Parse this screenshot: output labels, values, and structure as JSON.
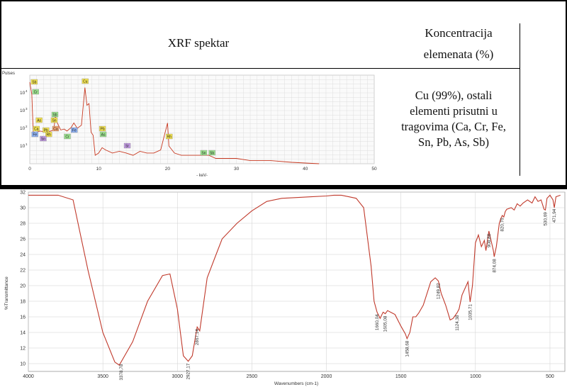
{
  "header": {
    "left_title": "XRF spektar",
    "right_title_line1": "Koncentracija",
    "right_title_line2": "elemenata (%)"
  },
  "concentration_text": [
    "Cu (99%), ostali",
    "elementi prisutni u",
    "tragovima (Ca, Cr, Fe,",
    "Sn, Pb, As, Sb)"
  ],
  "colors": {
    "spectrum": "#c83a22",
    "ir": "#c0392b",
    "grid": "#cfcfcf",
    "xrf_grid": "#d8d8d8"
  },
  "chart_data": [
    {
      "type": "line",
      "title": "",
      "ylabel": "Pulses",
      "xlabel": "- keV-",
      "log_scale_y": true,
      "xlim": [
        0,
        50
      ],
      "ylim": [
        1,
        100000
      ],
      "xticks": [
        0,
        10,
        20,
        30,
        40,
        50
      ],
      "yticks": [
        "10",
        "10",
        "10",
        "10",
        "10"
      ],
      "yticks_exp": [
        "4",
        "3",
        "2",
        "1",
        ""
      ],
      "series": [
        {
          "x": [
            0,
            0.3,
            0.5,
            0.8,
            1,
            1.5,
            2,
            2.5,
            3,
            3.5,
            3.7,
            4,
            4.5,
            5,
            5.4,
            6,
            6.4,
            6.9,
            7.5,
            8.0,
            8.3,
            8.6,
            8.9,
            9.2,
            9.5,
            10,
            10.5,
            11,
            12,
            13,
            14,
            15,
            16,
            17,
            18,
            19,
            20,
            20.2,
            21,
            22,
            23,
            25,
            26,
            27,
            28,
            30,
            32,
            35,
            38,
            42
          ],
          "y": [
            40000,
            8000,
            60,
            40,
            60,
            70,
            65,
            60,
            70,
            80,
            500,
            200,
            80,
            90,
            70,
            110,
            200,
            100,
            150,
            20000,
            2000,
            2500,
            60,
            40,
            3,
            4,
            8,
            6,
            4,
            5,
            4,
            3,
            5,
            4,
            4,
            6,
            200,
            10,
            4,
            3,
            3,
            3,
            3,
            2,
            2,
            2,
            1.5,
            1.5,
            1.2,
            1
          ]
        }
      ],
      "element_labels": [
        {
          "text": "Sb",
          "kev": 0.6,
          "color": "#f0e050"
        },
        {
          "text": "Cr",
          "kev": 0.8,
          "color": "#9be08e"
        },
        {
          "text": "Cu",
          "kev": 8.0,
          "color": "#f0e050"
        },
        {
          "text": "Sb",
          "kev": 3.6,
          "color": "#9be08e"
        },
        {
          "text": "Sn",
          "kev": 3.5,
          "color": "#f0e050"
        },
        {
          "text": "As",
          "kev": 1.3,
          "color": "#f0e050"
        },
        {
          "text": "Ca",
          "kev": 0.9,
          "color": "#f0e050"
        },
        {
          "text": "Pb",
          "kev": 2.3,
          "color": "#f0e050"
        },
        {
          "text": "Fe",
          "kev": 0.7,
          "color": "#8eb0f0"
        },
        {
          "text": "Rh",
          "kev": 2.7,
          "color": "#f0e050"
        },
        {
          "text": "Sn",
          "kev": 1.9,
          "color": "#c09ae0"
        },
        {
          "text": "Ca",
          "kev": 3.7,
          "color": "#f0a070"
        },
        {
          "text": "Cr",
          "kev": 5.4,
          "color": "#9be08e"
        },
        {
          "text": "Fe",
          "kev": 6.4,
          "color": "#8eb0f0"
        },
        {
          "text": "Pb",
          "kev": 10.5,
          "color": "#f0e050"
        },
        {
          "text": "As",
          "kev": 10.6,
          "color": "#9be08e"
        },
        {
          "text": "Sr",
          "kev": 14.1,
          "color": "#c09ae0"
        },
        {
          "text": "Rh",
          "kev": 20.2,
          "color": "#f0e050"
        },
        {
          "text": "Sn",
          "kev": 25.2,
          "color": "#9be08e"
        },
        {
          "text": "Sb",
          "kev": 26.4,
          "color": "#9be08e"
        }
      ]
    },
    {
      "type": "line",
      "title": "",
      "xlabel": "Wavenumbers (cm-1)",
      "ylabel": "%Transmittance",
      "xlim": [
        4000,
        400
      ],
      "ylim": [
        9,
        32
      ],
      "xticks": [
        4000,
        3500,
        3000,
        2500,
        2000,
        1500,
        1000,
        500
      ],
      "yticks": [
        10,
        12,
        14,
        16,
        18,
        20,
        22,
        24,
        26,
        28,
        30,
        32
      ],
      "series": [
        {
          "x": [
            4000,
            3800,
            3700,
            3600,
            3500,
            3420,
            3390,
            3300,
            3200,
            3100,
            3050,
            3000,
            2960,
            2927,
            2900,
            2870,
            2867,
            2850,
            2800,
            2750,
            2700,
            2600,
            2500,
            2400,
            2300,
            2200,
            2100,
            2000,
            1950,
            1900,
            1850,
            1800,
            1750,
            1700,
            1680,
            1660,
            1650,
            1640,
            1620,
            1605,
            1590,
            1560,
            1540,
            1500,
            1470,
            1459,
            1440,
            1420,
            1400,
            1380,
            1350,
            1300,
            1270,
            1249,
            1230,
            1200,
            1170,
            1150,
            1124,
            1110,
            1090,
            1050,
            1036,
            1020,
            1000,
            980,
            960,
            940,
            930,
            910,
            880,
            874,
            860,
            840,
            830,
            820,
            810,
            800,
            790,
            760,
            740,
            720,
            700,
            680,
            650,
            620,
            600,
            580,
            560,
            540,
            531,
            520,
            500,
            480,
            471,
            460,
            430
          ],
          "y": [
            31.6,
            31.6,
            31.0,
            22,
            14,
            10.2,
            9.8,
            12.8,
            18,
            21.3,
            21.5,
            17,
            11,
            10.3,
            11.0,
            14.4,
            14.7,
            14.2,
            21,
            23.5,
            26,
            28,
            29.6,
            30.8,
            31.2,
            31.3,
            31.4,
            31.5,
            31.6,
            31.6,
            31.4,
            31.2,
            30,
            22.5,
            18,
            16.6,
            16.2,
            15.8,
            16.6,
            16.4,
            16.8,
            16.5,
            16.3,
            14.8,
            13.8,
            13.2,
            14,
            16,
            16,
            16.5,
            17.5,
            20.5,
            21,
            20.6,
            19,
            17.5,
            15.6,
            15.8,
            16.5,
            17,
            18.8,
            20.5,
            17.9,
            20,
            25.5,
            26.5,
            25,
            25.8,
            24.5,
            27.0,
            24.5,
            23.7,
            25,
            28,
            28.6,
            29,
            28.8,
            29.5,
            29.8,
            30.0,
            29.7,
            30.5,
            30.2,
            30.6,
            31,
            30.6,
            31.4,
            30.8,
            31.0,
            29.8,
            29.7,
            31.2,
            31.6,
            31.0,
            30.0,
            31.4,
            31.6
          ]
        }
      ],
      "peak_labels": [
        {
          "text": "3378,78",
          "x": 3378
        },
        {
          "text": "2927,17",
          "x": 2927
        },
        {
          "text": "2867,14",
          "x": 2867
        },
        {
          "text": "1660,04",
          "x": 1660
        },
        {
          "text": "1605,08",
          "x": 1605
        },
        {
          "text": "1458,68",
          "x": 1459
        },
        {
          "text": "1249,82",
          "x": 1249
        },
        {
          "text": "1124,38",
          "x": 1124
        },
        {
          "text": "1035,71",
          "x": 1036
        },
        {
          "text": "908,88",
          "x": 909
        },
        {
          "text": "874,08",
          "x": 874
        },
        {
          "text": "820,76",
          "x": 821
        },
        {
          "text": "530,69",
          "x": 531
        },
        {
          "text": "471,94",
          "x": 472
        }
      ]
    }
  ]
}
